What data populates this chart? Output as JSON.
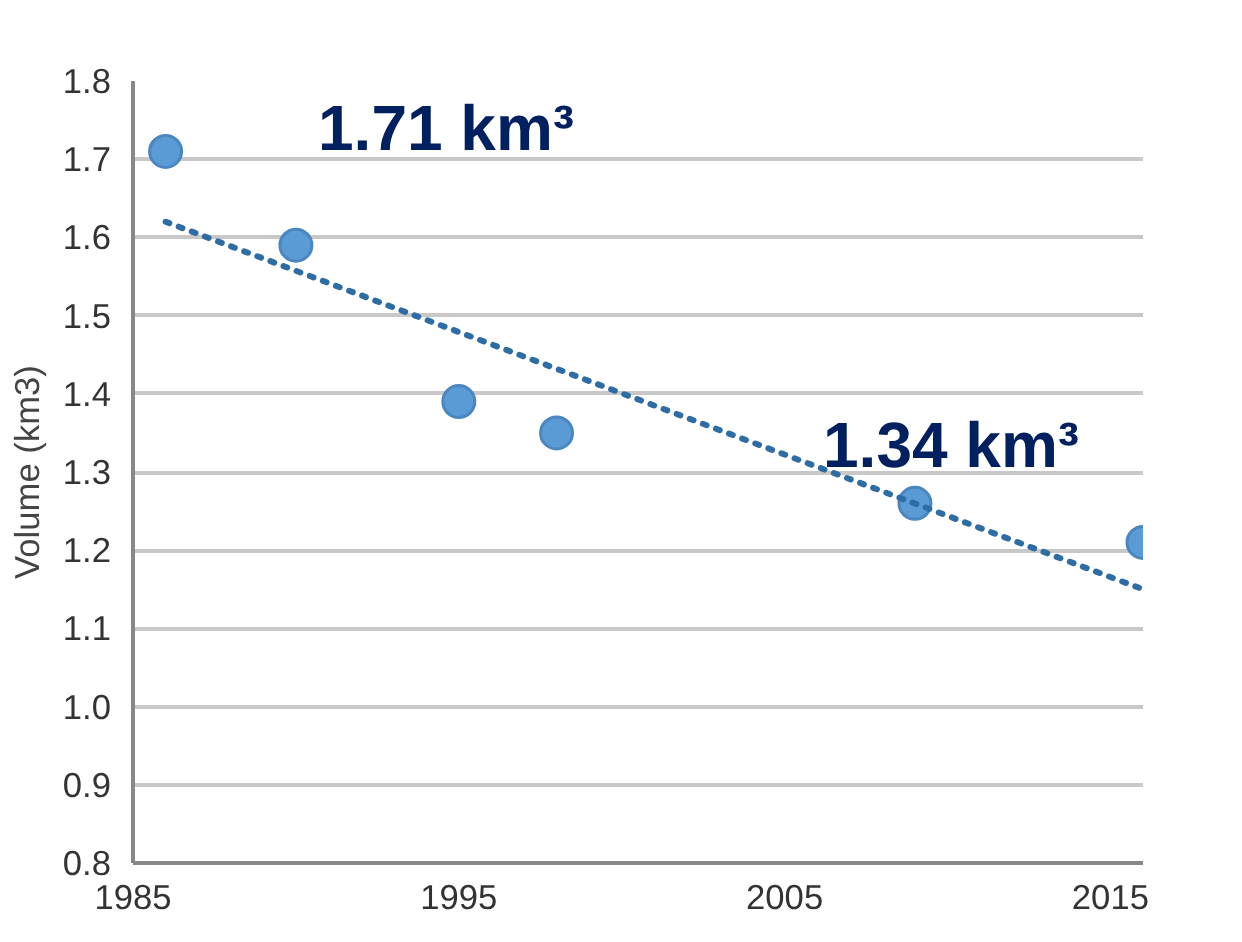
{
  "chart_data": {
    "type": "scatter",
    "ylabel": "Volume (km3)",
    "xlim": [
      1985,
      2016
    ],
    "xticks": [
      1985,
      1995,
      2005,
      2015
    ],
    "ylim": [
      0.8,
      1.8
    ],
    "yticks": [
      {
        "value": 0.8,
        "label": "0.8"
      },
      {
        "value": 0.9,
        "label": "0.9"
      },
      {
        "value": 1.0,
        "label": "1.0"
      },
      {
        "value": 1.1,
        "label": "1.1"
      },
      {
        "value": 1.2,
        "label": "1.2"
      },
      {
        "value": 1.3,
        "label": "1.3"
      },
      {
        "value": 1.4,
        "label": "1.4"
      },
      {
        "value": 1.5,
        "label": "1.5"
      },
      {
        "value": 1.6,
        "label": "1.6"
      },
      {
        "value": 1.7,
        "label": "1.7"
      },
      {
        "value": 1.8,
        "label": "1.8"
      }
    ],
    "grid": "y",
    "series": [
      {
        "marker": "circle",
        "color": "#5b9bd5",
        "x": [
          1986,
          1990,
          1995,
          1998,
          2009,
          2016
        ],
        "values": [
          1.71,
          1.59,
          1.39,
          1.35,
          1.26,
          1.21
        ]
      },
      {
        "type": "line",
        "line_style": "dotted",
        "color": "#2e6ca4",
        "x": [
          1986,
          2016
        ],
        "values": [
          1.62,
          1.15
        ]
      }
    ],
    "annotations": [
      "1.71 km³",
      "1.34 km³"
    ]
  }
}
